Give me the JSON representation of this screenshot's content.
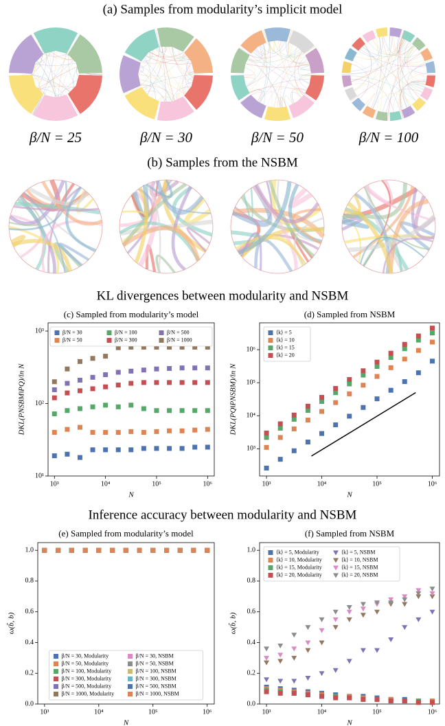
{
  "panel_a": {
    "title": "(a) Samples from modularity’s implicit model",
    "labels": [
      "β/N = 25",
      "β/N = 30",
      "β/N = 50",
      "β/N = 100"
    ]
  },
  "panel_b": {
    "title": "(b) Samples from the NSBM"
  },
  "kl_title": "KL divergences between modularity and NSBM",
  "inference_title": "Inference accuracy between modularity and NSBM",
  "chart_data": [
    {
      "type": "scatter",
      "title": "(c) Sampled from modularity’s model",
      "xlabel": "N",
      "ylabel": "DKL(PNSBM‖PQ)/ln N",
      "log_x": true,
      "log_y": true,
      "xlim": [
        750,
        1350000
      ],
      "xticks": [
        {
          "value": 1000,
          "label": "10³"
        },
        {
          "value": 10000,
          "label": "10⁴"
        },
        {
          "value": 100000,
          "label": "10⁵"
        },
        {
          "value": 1000000,
          "label": "10⁶"
        }
      ],
      "ylim": [
        10,
        1300
      ],
      "yticks": [
        {
          "value": 10,
          "label": "10¹"
        },
        {
          "value": 100,
          "label": "10²"
        },
        {
          "value": 1000,
          "label": "10³"
        }
      ],
      "legend": {
        "loc": "upper center",
        "ncol": 3
      },
      "x": [
        1000,
        1780,
        3160,
        5620,
        10000,
        17800,
        31600,
        56200,
        100000,
        178000,
        316000,
        562000,
        1000000
      ],
      "series": [
        {
          "name": "β/N = 30",
          "color": "#4c72b0",
          "marker": "s",
          "values": [
            19,
            20,
            18,
            23,
            23,
            23,
            23,
            24,
            24,
            24,
            24,
            25,
            25
          ]
        },
        {
          "name": "β/N = 50",
          "color": "#dd8452",
          "marker": "s",
          "values": [
            40,
            44,
            47,
            40,
            40,
            40,
            41,
            40,
            41,
            42,
            42,
            43,
            44
          ]
        },
        {
          "name": "β/N = 100",
          "color": "#55a868",
          "marker": "s",
          "values": [
            72,
            80,
            85,
            90,
            95,
            90,
            95,
            85,
            80,
            80,
            80,
            80,
            80
          ]
        },
        {
          "name": "β/N = 300",
          "color": "#c44e52",
          "marker": "s",
          "values": [
            120,
            140,
            150,
            160,
            170,
            180,
            190,
            195,
            195,
            195,
            195,
            195,
            195
          ]
        },
        {
          "name": "β/N = 500",
          "color": "#8172b3",
          "marker": "s",
          "values": [
            155,
            190,
            210,
            230,
            250,
            270,
            280,
            290,
            300,
            305,
            310,
            310,
            310
          ]
        },
        {
          "name": "β/N = 1000",
          "color": "#937860",
          "marker": "s",
          "values": [
            200,
            300,
            380,
            420,
            450,
            590,
            600,
            600,
            600,
            600,
            600,
            600,
            600
          ]
        }
      ]
    },
    {
      "type": "scatter",
      "title": "(d) Sampled from NSBM",
      "xlabel": "N",
      "ylabel": "DKL(PQ‖PNSBM)/ln N",
      "log_x": true,
      "log_y": true,
      "xlim": [
        750,
        1350000
      ],
      "xticks": [
        {
          "value": 1000,
          "label": "10³"
        },
        {
          "value": 10000,
          "label": "10⁴"
        },
        {
          "value": 100000,
          "label": "10⁵"
        },
        {
          "value": 1000000,
          "label": "10⁶"
        }
      ],
      "ylim": [
        150,
        6500000
      ],
      "yticks": [
        {
          "value": 1000,
          "label": "10³"
        },
        {
          "value": 10000,
          "label": "10⁴"
        },
        {
          "value": 100000,
          "label": "10⁵"
        },
        {
          "value": 1000000,
          "label": "10⁶"
        }
      ],
      "legend": {
        "loc": "upper left",
        "ncol": 1
      },
      "x": [
        1000,
        1780,
        3160,
        5620,
        10000,
        17800,
        31600,
        56200,
        100000,
        178000,
        316000,
        562000,
        1000000
      ],
      "series": [
        {
          "name": "⟨k⟩ = 5",
          "color": "#4c72b0",
          "marker": "s",
          "values": [
            260,
            480,
            870,
            1600,
            2900,
            5300,
            9700,
            17800,
            32500,
            59000,
            108000,
            200000,
            450000
          ]
        },
        {
          "name": "⟨k⟩ = 10",
          "color": "#dd8452",
          "marker": "s",
          "values": [
            1100,
            2200,
            4000,
            7400,
            13500,
            25000,
            46000,
            84000,
            155000,
            285000,
            520000,
            950000,
            1700000
          ]
        },
        {
          "name": "⟨k⟩ = 15",
          "color": "#55a868",
          "marker": "s",
          "values": [
            2200,
            4200,
            7800,
            14500,
            27000,
            50000,
            92000,
            170000,
            310000,
            580000,
            1070000,
            1950000,
            3200000
          ]
        },
        {
          "name": "⟨k⟩ = 20",
          "color": "#c44e52",
          "marker": "s",
          "values": [
            3000,
            5700,
            10500,
            19500,
            36000,
            67000,
            125000,
            230000,
            420000,
            780000,
            1450000,
            2600000,
            4500000
          ]
        }
      ],
      "guide": {
        "color": "#000000",
        "x": [
          6500,
          500000
        ],
        "values": [
          600,
          50000
        ]
      }
    },
    {
      "type": "scatter",
      "title": "(e) Sampled from modularity’s model",
      "xlabel": "N",
      "ylabel": "ω(b̂, b)",
      "log_x": true,
      "log_y": false,
      "xlim": [
        750,
        1350000
      ],
      "xticks": [
        {
          "value": 1000,
          "label": "10³"
        },
        {
          "value": 10000,
          "label": "10⁴"
        },
        {
          "value": 100000,
          "label": "10⁵"
        },
        {
          "value": 1000000,
          "label": "10⁶"
        }
      ],
      "ylim": [
        0,
        1.05
      ],
      "yticks": [
        {
          "value": 0,
          "label": "0.0"
        },
        {
          "value": 0.2,
          "label": "0.2"
        },
        {
          "value": 0.4,
          "label": "0.4"
        },
        {
          "value": 0.6,
          "label": "0.6"
        },
        {
          "value": 0.8,
          "label": "0.8"
        },
        {
          "value": 1,
          "label": "1.0"
        }
      ],
      "legend": {
        "loc": "lower center",
        "ncol": 2
      },
      "x": [
        1000,
        1780,
        3160,
        5620,
        10000,
        17800,
        31600,
        56200,
        100000,
        178000,
        316000,
        562000,
        1000000
      ],
      "series": [
        {
          "name": "β/N = 30, Modularity",
          "color": "#4c72b0",
          "marker": "s",
          "values": [
            1,
            1,
            1,
            1,
            1,
            1,
            1,
            1,
            1,
            1,
            1,
            1,
            1
          ]
        },
        {
          "name": "β/N = 50, Modularity",
          "color": "#dd8452",
          "marker": "s",
          "values": [
            1,
            1,
            1,
            1,
            1,
            1,
            1,
            1,
            1,
            1,
            1,
            1,
            1
          ]
        },
        {
          "name": "β/N = 100, Modularity",
          "color": "#55a868",
          "marker": "s",
          "values": [
            1,
            1,
            1,
            1,
            1,
            1,
            1,
            1,
            1,
            1,
            1,
            1,
            1
          ]
        },
        {
          "name": "β/N = 300, Modularity",
          "color": "#c44e52",
          "marker": "s",
          "values": [
            1,
            1,
            1,
            1,
            1,
            1,
            1,
            1,
            1,
            1,
            1,
            1,
            1
          ]
        },
        {
          "name": "β/N = 500, Modularity",
          "color": "#8172b3",
          "marker": "s",
          "values": [
            1,
            1,
            1,
            1,
            1,
            1,
            1,
            1,
            1,
            1,
            1,
            1,
            1
          ]
        },
        {
          "name": "β/N = 1000, Modularity",
          "color": "#937860",
          "marker": "s",
          "values": [
            1,
            1,
            1,
            1,
            1,
            1,
            1,
            1,
            1,
            1,
            1,
            1,
            1
          ]
        },
        {
          "name": "β/N = 30, NSBM",
          "color": "#da8bc3",
          "marker": "s",
          "values": [
            1,
            1,
            1,
            1,
            1,
            1,
            1,
            1,
            1,
            1,
            1,
            1,
            1
          ]
        },
        {
          "name": "β/N = 50, NSBM",
          "color": "#8c8c8c",
          "marker": "s",
          "values": [
            1,
            1,
            1,
            1,
            1,
            1,
            1,
            1,
            1,
            1,
            1,
            1,
            1
          ]
        },
        {
          "name": "β/N = 100, NSBM",
          "color": "#ccb974",
          "marker": "s",
          "values": [
            1,
            1,
            1,
            1,
            1,
            1,
            1,
            1,
            1,
            1,
            1,
            1,
            1
          ]
        },
        {
          "name": "β/N = 300, NSBM",
          "color": "#64b5cd",
          "marker": "s",
          "values": [
            1,
            1,
            1,
            1,
            1,
            1,
            1,
            1,
            1,
            1,
            1,
            1,
            1
          ]
        },
        {
          "name": "β/N = 500, NSBM",
          "color": "#4c72b0",
          "marker": "s",
          "values": [
            1,
            1,
            1,
            1,
            1,
            1,
            1,
            1,
            1,
            1,
            1,
            1,
            1
          ]
        },
        {
          "name": "β/N = 1000, NSBM",
          "color": "#dd8452",
          "marker": "s",
          "values": [
            1,
            1,
            1,
            1,
            1,
            1,
            1,
            1,
            1,
            1,
            1,
            1,
            1
          ]
        }
      ]
    },
    {
      "type": "scatter",
      "title": "(f) Sampled from NSBM",
      "xlabel": "N",
      "ylabel": "ω(b̂, b)",
      "log_x": true,
      "log_y": false,
      "xlim": [
        750,
        1350000
      ],
      "xticks": [
        {
          "value": 1000,
          "label": "10³"
        },
        {
          "value": 10000,
          "label": "10⁴"
        },
        {
          "value": 100000,
          "label": "10⁵"
        },
        {
          "value": 1000000,
          "label": "10⁶"
        }
      ],
      "ylim": [
        0,
        1.05
      ],
      "yticks": [
        {
          "value": 0,
          "label": "0.0"
        },
        {
          "value": 0.2,
          "label": "0.2"
        },
        {
          "value": 0.4,
          "label": "0.4"
        },
        {
          "value": 0.6,
          "label": "0.6"
        },
        {
          "value": 0.8,
          "label": "0.8"
        },
        {
          "value": 1,
          "label": "1.0"
        }
      ],
      "legend": {
        "loc": "upper left",
        "ncol": 2
      },
      "x": [
        1000,
        1780,
        3160,
        5620,
        10000,
        17800,
        31600,
        56200,
        100000,
        178000,
        316000,
        562000,
        1000000
      ],
      "series": [
        {
          "name": "⟨k⟩ = 5, Modularity",
          "color": "#4c72b0",
          "marker": "s",
          "values": [
            0.11,
            0.1,
            0.09,
            0.08,
            0.07,
            0.06,
            0.05,
            0.05,
            0.04,
            0.03,
            0.03,
            0.02,
            0.02
          ]
        },
        {
          "name": "⟨k⟩ = 10, Modularity",
          "color": "#dd8452",
          "marker": "s",
          "values": [
            0.1,
            0.09,
            0.08,
            0.07,
            0.06,
            0.05,
            0.05,
            0.04,
            0.03,
            0.03,
            0.02,
            0.02,
            0.02
          ]
        },
        {
          "name": "⟨k⟩ = 15, Modularity",
          "color": "#55a868",
          "marker": "s",
          "values": [
            0.09,
            0.08,
            0.07,
            0.06,
            0.05,
            0.05,
            0.04,
            0.03,
            0.03,
            0.02,
            0.02,
            0.02,
            0.01
          ]
        },
        {
          "name": "⟨k⟩ = 20, Modularity",
          "color": "#c44e52",
          "marker": "s",
          "values": [
            0.08,
            0.07,
            0.07,
            0.06,
            0.05,
            0.04,
            0.04,
            0.03,
            0.03,
            0.02,
            0.02,
            0.01,
            0.01
          ]
        },
        {
          "name": "⟨k⟩ = 5, NSBM",
          "color": "#8172b3",
          "marker": "v",
          "values": [
            0.16,
            0.15,
            0.15,
            0.17,
            0.2,
            0.22,
            0.28,
            0.35,
            0.35,
            0.42,
            0.5,
            0.55,
            0.6
          ]
        },
        {
          "name": "⟨k⟩ = 10, NSBM",
          "color": "#937860",
          "marker": "v",
          "values": [
            0.27,
            0.28,
            0.3,
            0.35,
            0.4,
            0.5,
            0.55,
            0.58,
            0.6,
            0.65,
            0.65,
            0.7,
            0.7
          ]
        },
        {
          "name": "⟨k⟩ = 15, NSBM",
          "color": "#da8bc3",
          "marker": "v",
          "values": [
            0.3,
            0.32,
            0.36,
            0.4,
            0.48,
            0.55,
            0.6,
            0.62,
            0.65,
            0.68,
            0.7,
            0.74,
            0.72
          ]
        },
        {
          "name": "⟨k⟩ = 20, NSBM",
          "color": "#8c8c8c",
          "marker": "v",
          "values": [
            0.36,
            0.38,
            0.45,
            0.5,
            0.55,
            0.6,
            0.63,
            0.65,
            0.66,
            0.66,
            0.68,
            0.72,
            0.75
          ]
        }
      ]
    }
  ]
}
